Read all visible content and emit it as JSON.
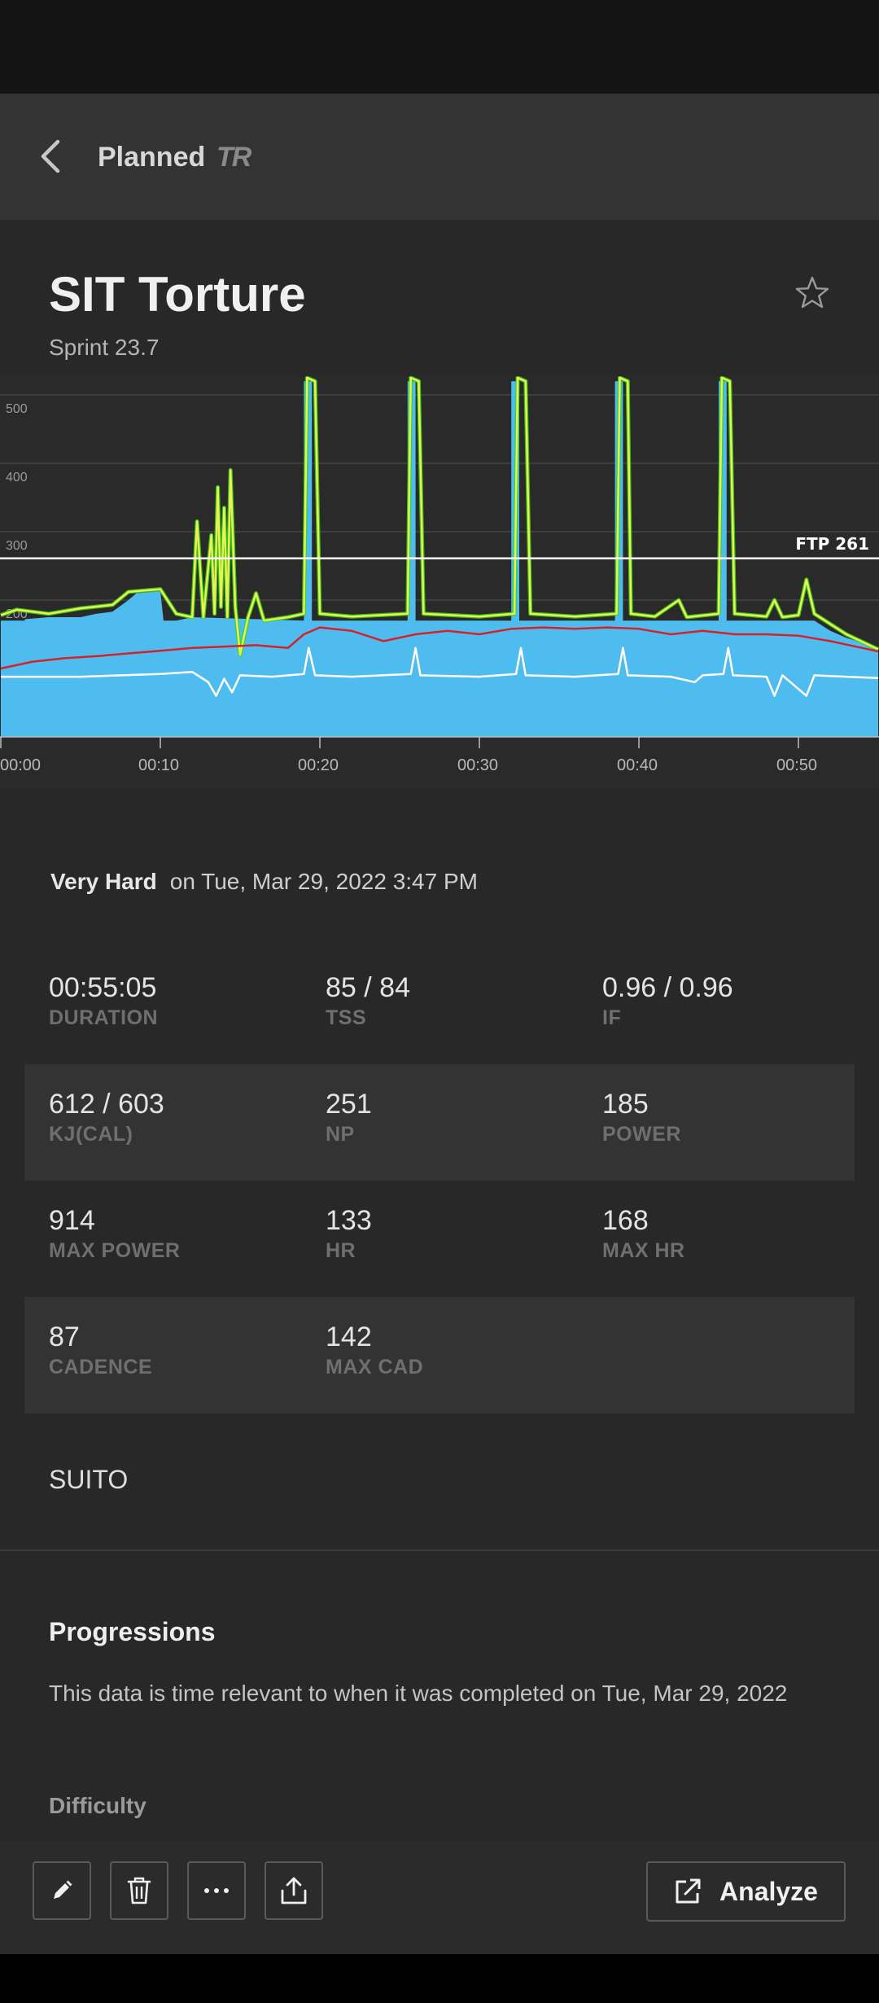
{
  "nav": {
    "title": "Planned",
    "logo_text": "TR",
    "back_icon": "chevron-left-icon"
  },
  "workout": {
    "title": "SIT Torture",
    "subtitle": "Sprint 23.7",
    "favorite_icon": "star-outline-icon"
  },
  "chart_data": {
    "type": "area",
    "x": [
      "00:00",
      "00:10",
      "00:20",
      "00:30",
      "00:40",
      "00:50"
    ],
    "x_unit": "elapsed time (mm:ss)",
    "xlim": [
      0,
      55.08
    ],
    "ylim": [
      0,
      520
    ],
    "y_ticks": [
      200,
      300,
      400,
      500
    ],
    "ftp_label": "FTP 261",
    "ftp": 261,
    "grid": true,
    "colors": {
      "target": "#4ebcef",
      "power_over": "#2fdc12",
      "power": "#f0ee58",
      "hr": "#d4212b",
      "cadence": "#ffffff"
    },
    "series": [
      {
        "values_key": "target",
        "points": [
          [
            0,
            170
          ],
          [
            1.5,
            170
          ],
          [
            1.5,
            172
          ],
          [
            3,
            175
          ],
          [
            5,
            175
          ],
          [
            6,
            180
          ],
          [
            7,
            183
          ],
          [
            8,
            200
          ],
          [
            8.5,
            210
          ],
          [
            10,
            213
          ],
          [
            10.2,
            170
          ],
          [
            11,
            170
          ],
          [
            12,
            175
          ],
          [
            19,
            170
          ],
          [
            19,
            520
          ],
          [
            19.5,
            520
          ],
          [
            19.5,
            170
          ],
          [
            25.5,
            170
          ],
          [
            25.5,
            520
          ],
          [
            26,
            520
          ],
          [
            26,
            170
          ],
          [
            32,
            170
          ],
          [
            32,
            520
          ],
          [
            32.5,
            520
          ],
          [
            32.5,
            170
          ],
          [
            38.5,
            170
          ],
          [
            38.5,
            520
          ],
          [
            39,
            520
          ],
          [
            39,
            170
          ],
          [
            45,
            170
          ],
          [
            45,
            520
          ],
          [
            45.5,
            520
          ],
          [
            45.5,
            170
          ],
          [
            51,
            170
          ],
          [
            52,
            155
          ],
          [
            53,
            145
          ],
          [
            55,
            130
          ]
        ]
      },
      {
        "values_key": "power",
        "points": [
          [
            0,
            178
          ],
          [
            1,
            186
          ],
          [
            3,
            180
          ],
          [
            5,
            188
          ],
          [
            7,
            193
          ],
          [
            8,
            212
          ],
          [
            10,
            216
          ],
          [
            11,
            180
          ],
          [
            12,
            175
          ],
          [
            12.3,
            315
          ],
          [
            12.7,
            175
          ],
          [
            13.2,
            295
          ],
          [
            13.4,
            180
          ],
          [
            13.6,
            365
          ],
          [
            13.8,
            190
          ],
          [
            14,
            335
          ],
          [
            14.2,
            175
          ],
          [
            14.4,
            390
          ],
          [
            14.7,
            190
          ],
          [
            15,
            120
          ],
          [
            15.5,
            175
          ],
          [
            16,
            210
          ],
          [
            16.5,
            170
          ],
          [
            18,
            175
          ],
          [
            19,
            180
          ],
          [
            19.2,
            530
          ],
          [
            19.7,
            520
          ],
          [
            20,
            180
          ],
          [
            22,
            176
          ],
          [
            25.5,
            180
          ],
          [
            25.7,
            530
          ],
          [
            26.2,
            520
          ],
          [
            26.5,
            180
          ],
          [
            30,
            176
          ],
          [
            32.2,
            180
          ],
          [
            32.4,
            530
          ],
          [
            32.9,
            520
          ],
          [
            33.2,
            180
          ],
          [
            36,
            176
          ],
          [
            38.6,
            180
          ],
          [
            38.8,
            530
          ],
          [
            39.3,
            520
          ],
          [
            39.5,
            180
          ],
          [
            41,
            176
          ],
          [
            42.5,
            200
          ],
          [
            43,
            175
          ],
          [
            45,
            180
          ],
          [
            45.2,
            530
          ],
          [
            45.7,
            520
          ],
          [
            46,
            180
          ],
          [
            48,
            176
          ],
          [
            48.5,
            200
          ],
          [
            49,
            175
          ],
          [
            50,
            178
          ],
          [
            50.5,
            230
          ],
          [
            51,
            180
          ],
          [
            52,
            165
          ],
          [
            53,
            150
          ],
          [
            55,
            128
          ]
        ]
      },
      {
        "values_key": "hr",
        "points": [
          [
            0,
            100
          ],
          [
            2,
            110
          ],
          [
            4,
            115
          ],
          [
            6,
            118
          ],
          [
            8,
            122
          ],
          [
            10,
            126
          ],
          [
            12,
            130
          ],
          [
            14,
            132
          ],
          [
            16,
            134
          ],
          [
            18,
            130
          ],
          [
            19,
            150
          ],
          [
            20,
            160
          ],
          [
            22,
            155
          ],
          [
            24,
            140
          ],
          [
            26,
            150
          ],
          [
            28,
            155
          ],
          [
            30,
            150
          ],
          [
            32,
            158
          ],
          [
            34,
            160
          ],
          [
            36,
            158
          ],
          [
            38,
            160
          ],
          [
            40,
            158
          ],
          [
            42,
            150
          ],
          [
            44,
            155
          ],
          [
            46,
            150
          ],
          [
            48,
            150
          ],
          [
            50,
            148
          ],
          [
            52,
            140
          ],
          [
            54,
            130
          ],
          [
            55,
            125
          ]
        ]
      },
      {
        "values_key": "cadence",
        "points": [
          [
            0,
            88
          ],
          [
            5,
            88
          ],
          [
            10,
            92
          ],
          [
            12,
            95
          ],
          [
            13,
            80
          ],
          [
            13.5,
            60
          ],
          [
            14,
            85
          ],
          [
            14.5,
            65
          ],
          [
            15,
            90
          ],
          [
            17,
            88
          ],
          [
            19,
            92
          ],
          [
            19.3,
            130
          ],
          [
            19.7,
            90
          ],
          [
            22,
            88
          ],
          [
            25.7,
            92
          ],
          [
            26,
            130
          ],
          [
            26.3,
            90
          ],
          [
            30,
            88
          ],
          [
            32.3,
            92
          ],
          [
            32.6,
            130
          ],
          [
            32.9,
            90
          ],
          [
            36,
            88
          ],
          [
            38.7,
            92
          ],
          [
            39,
            130
          ],
          [
            39.3,
            90
          ],
          [
            42,
            88
          ],
          [
            43.5,
            80
          ],
          [
            44,
            90
          ],
          [
            45.3,
            92
          ],
          [
            45.6,
            130
          ],
          [
            45.9,
            90
          ],
          [
            48,
            88
          ],
          [
            48.5,
            60
          ],
          [
            49,
            90
          ],
          [
            50.5,
            60
          ],
          [
            51,
            90
          ],
          [
            55,
            86
          ]
        ]
      }
    ]
  },
  "summary": {
    "difficulty": "Very Hard",
    "date": "on Tue, Mar 29, 2022 3:47 PM"
  },
  "stats": [
    [
      {
        "value": "00:55:05",
        "label": "DURATION"
      },
      {
        "value": "85 / 84",
        "label": "TSS"
      },
      {
        "value": "0.96 / 0.96",
        "label": "IF"
      }
    ],
    [
      {
        "value": "612 / 603",
        "label": "KJ(CAL)"
      },
      {
        "value": "251",
        "label": "NP"
      },
      {
        "value": "185",
        "label": "POWER"
      }
    ],
    [
      {
        "value": "914",
        "label": "MAX POWER"
      },
      {
        "value": "133",
        "label": "HR"
      },
      {
        "value": "168",
        "label": "MAX HR"
      }
    ],
    [
      {
        "value": "87",
        "label": "CADENCE"
      },
      {
        "value": "142",
        "label": "MAX CAD"
      }
    ]
  ],
  "device": "SUITO",
  "progressions": {
    "title": "Progressions",
    "text": "This data is time relevant to when it was completed on Tue, Mar 29, 2022",
    "difficulty_label": "Difficulty"
  },
  "toolbar": {
    "icons": [
      "pencil-icon",
      "trash-icon",
      "more-icon",
      "share-icon"
    ],
    "analyze_label": "Analyze",
    "analyze_icon": "external-link-icon"
  }
}
